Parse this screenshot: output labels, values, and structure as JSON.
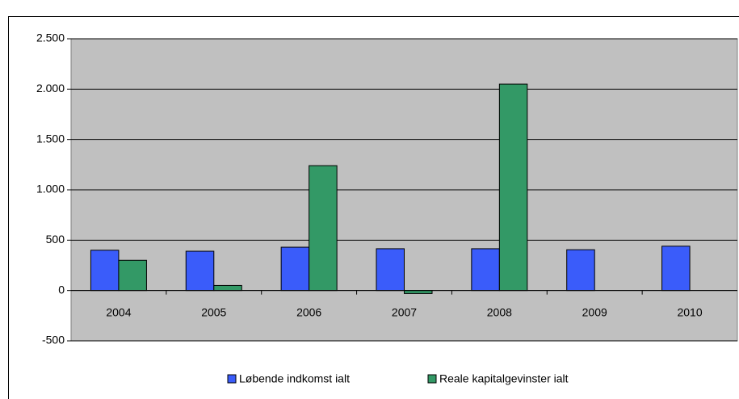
{
  "chart_data": {
    "type": "bar",
    "categories": [
      "2004",
      "2005",
      "2006",
      "2007",
      "2008",
      "2009",
      "2010"
    ],
    "series": [
      {
        "name": "Løbende indkomst ialt",
        "color": "#3a5cfa",
        "values": [
          400,
          390,
          430,
          415,
          415,
          405,
          440
        ]
      },
      {
        "name": "Reale kapitalgevinster ialt",
        "color": "#339966",
        "values": [
          300,
          50,
          1240,
          -30,
          2050,
          null,
          null
        ]
      }
    ],
    "ylim": [
      -500,
      2500
    ],
    "yticks": [
      {
        "value": -500,
        "label": "-500"
      },
      0,
      500,
      {
        "value": 1000,
        "label": "1.000"
      },
      {
        "value": 1500,
        "label": "1.500"
      },
      {
        "value": 2000,
        "label": "2.000"
      },
      {
        "value": 2500,
        "label": "2.500"
      }
    ],
    "grid": true,
    "legend": "bottom"
  }
}
